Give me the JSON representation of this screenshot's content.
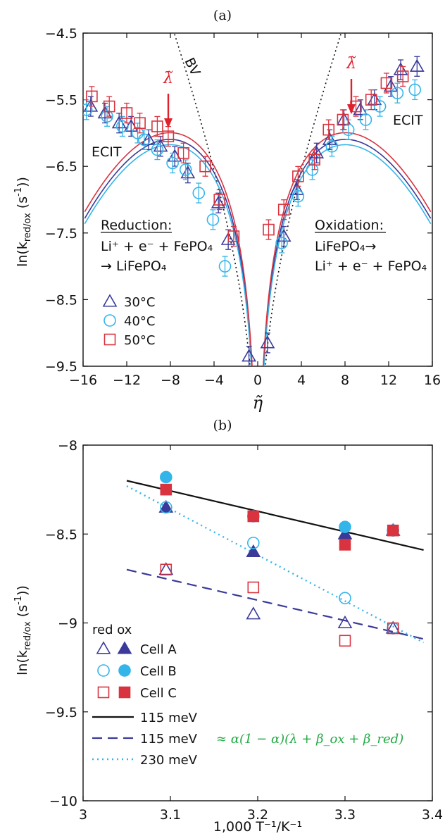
{
  "panel_a": {
    "label": "(a)",
    "ylabel_main": "ln(k",
    "ylabel_sub": "red/ox",
    "ylabel_end": " (s",
    "ylabel_sup": "-1",
    "ylabel_close": "))",
    "xlabel": "η̃",
    "bv_label": "BV",
    "ecit_left": "ECIT",
    "ecit_right": "ECIT",
    "lambda_left": "λ̃",
    "lambda_right": "λ̃",
    "reduction_title": "Reduction:",
    "reduction_line1": "Li⁺ + e⁻ + FePO₄",
    "reduction_line2": "→ LiFePO₄",
    "oxidation_title": "Oxidation:",
    "oxidation_line1": "LiFePO₄→",
    "oxidation_line2": "Li⁺ + e⁻ + FePO₄",
    "legend": [
      "30°C",
      "40°C",
      "50°C"
    ],
    "colors": {
      "c30": "#3a3a9a",
      "c40": "#33b5ea",
      "c50": "#d9333f",
      "arrow": "#e0202a"
    }
  },
  "panel_b": {
    "label": "(b)",
    "ylabel_main": "ln(k",
    "ylabel_sub": "red/ox",
    "ylabel_end": " (s",
    "ylabel_sup": "-1",
    "ylabel_close": "))",
    "xlabel": "1,000 T⁻¹/K⁻¹",
    "legend_header": "red ox",
    "legend": [
      "Cell A",
      "Cell B",
      "Cell C",
      "115 meV",
      "115 meV",
      "230 meV"
    ],
    "formula": "≈ α(1 − α)(λ + β_ox + β_red)",
    "colors": {
      "cellA": "#3a3a9a",
      "cellB": "#33b5ea",
      "cellC": "#d9333f",
      "black": "#111111",
      "dashed": "#3a3a9a",
      "dotted": "#33b5ea",
      "formula": "#22aa44"
    }
  },
  "chart_data": [
    {
      "type": "scatter",
      "title": "(a)",
      "xlabel": "η̃",
      "ylabel": "ln(k_red/ox (s^-1))",
      "xlim": [
        -16,
        16
      ],
      "ylim": [
        -9.5,
        -4.5
      ],
      "xticks": [
        -16,
        -12,
        -8,
        -4,
        0,
        4,
        8,
        12,
        16
      ],
      "yticks": [
        -4.5,
        -5.5,
        -6.5,
        -7.5,
        -8.5,
        -9.5
      ],
      "series": [
        {
          "name": "30°C",
          "x": [
            -15.3,
            -14.0,
            -12.7,
            -11.6,
            -10.0,
            -8.9,
            -7.6,
            -6.4,
            -3.6,
            -2.7,
            -0.8,
            0.9,
            2.4,
            3.6,
            5.4,
            6.6,
            7.9,
            9.4,
            10.7,
            12.2,
            13.1,
            14.6
          ],
          "y": [
            -5.6,
            -5.7,
            -5.85,
            -5.9,
            -6.1,
            -6.2,
            -6.35,
            -6.6,
            -7.05,
            -7.6,
            -9.35,
            -9.15,
            -7.55,
            -6.85,
            -6.3,
            -6.1,
            -5.8,
            -5.65,
            -5.5,
            -5.3,
            -5.05,
            -5.0
          ]
        },
        {
          "name": "40°C",
          "x": [
            -15.7,
            -13.8,
            -12.4,
            -11.0,
            -10.4,
            -9.2,
            -7.8,
            -6.6,
            -5.4,
            -4.1,
            -3.0,
            2.2,
            3.7,
            5.0,
            6.8,
            8.3,
            9.9,
            11.2,
            12.8,
            14.4
          ],
          "y": [
            -5.65,
            -5.75,
            -5.9,
            -6.0,
            -6.1,
            -6.25,
            -6.45,
            -6.55,
            -6.9,
            -7.3,
            -8.0,
            -7.65,
            -6.95,
            -6.55,
            -6.2,
            -5.95,
            -5.8,
            -5.6,
            -5.4,
            -5.35
          ]
        },
        {
          "name": "50°C",
          "x": [
            -15.2,
            -13.6,
            -12.0,
            -10.8,
            -9.2,
            -8.2,
            -6.8,
            -4.8,
            -3.5,
            -2.2,
            1.0,
            2.4,
            3.7,
            5.2,
            6.5,
            7.8,
            9.0,
            10.4,
            11.8,
            13.3
          ],
          "y": [
            -5.45,
            -5.6,
            -5.7,
            -5.85,
            -5.9,
            -6.05,
            -6.3,
            -6.5,
            -7.0,
            -7.55,
            -7.45,
            -7.15,
            -6.65,
            -6.4,
            -5.95,
            -5.8,
            -5.6,
            -5.5,
            -5.25,
            -5.15
          ]
        }
      ]
    },
    {
      "type": "scatter",
      "title": "(b)",
      "xlabel": "1,000 T⁻¹/K⁻¹",
      "ylabel": "ln(k_red/ox (s^-1))",
      "xlim": [
        3.0,
        3.4
      ],
      "ylim": [
        -10,
        -8
      ],
      "xticks": [
        3.0,
        3.1,
        3.2,
        3.3,
        3.4
      ],
      "yticks": [
        -8,
        -8.5,
        -9,
        -9.5,
        -10
      ],
      "series": [
        {
          "name": "Cell A",
          "marker": "triangle",
          "x": [
            3.095,
            3.195,
            3.3,
            3.355
          ],
          "red": [
            -8.7,
            -8.95,
            -9.0,
            -9.03
          ],
          "ox": [
            -8.35,
            -8.6,
            -8.5,
            -8.48
          ]
        },
        {
          "name": "Cell B",
          "marker": "circle",
          "x": [
            3.095,
            3.195,
            3.3,
            3.355
          ],
          "red": [
            -8.35,
            -8.55,
            -8.86,
            -9.03
          ],
          "ox": [
            -8.18,
            -8.4,
            -8.46,
            -8.48
          ]
        },
        {
          "name": "Cell C",
          "marker": "square",
          "x": [
            3.095,
            3.195,
            3.3,
            3.355
          ],
          "red": [
            -8.7,
            -8.8,
            -9.1,
            -9.03
          ],
          "ox": [
            -8.25,
            -8.4,
            -8.56,
            -8.48
          ]
        }
      ],
      "lines": [
        {
          "name": "115 meV",
          "style": "solid",
          "x": [
            3.05,
            3.39
          ],
          "y": [
            -8.2,
            -8.59
          ]
        },
        {
          "name": "115 meV",
          "style": "dashed",
          "x": [
            3.05,
            3.39
          ],
          "y": [
            -8.7,
            -9.09
          ]
        },
        {
          "name": "230 meV",
          "style": "dotted",
          "x": [
            3.05,
            3.39
          ],
          "y": [
            -8.23,
            -9.11
          ]
        }
      ]
    }
  ]
}
